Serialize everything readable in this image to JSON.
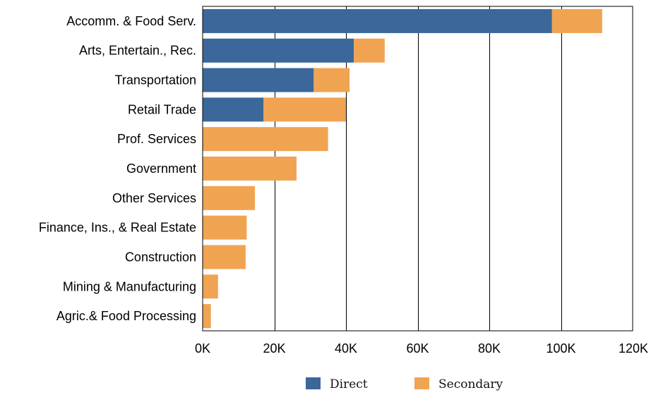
{
  "chart_data": {
    "type": "bar",
    "orientation": "horizontal",
    "stacked": true,
    "categories": [
      "Accomm. & Food Serv.",
      "Arts, Entertain., Rec.",
      "Transportation",
      "Retail Trade",
      "Prof. Services",
      "Government",
      "Other Services",
      "Finance, Ins., & Real Estate",
      "Construction",
      "Mining & Manufacturing",
      "Agric.& Food Processing"
    ],
    "series": [
      {
        "name": "Direct",
        "color": "#3b679a",
        "values": [
          97500,
          42200,
          31000,
          17000,
          0,
          0,
          0,
          0,
          0,
          0,
          0
        ]
      },
      {
        "name": "Secondary",
        "color": "#f0a452",
        "values": [
          14000,
          8600,
          10000,
          23000,
          35000,
          26200,
          14600,
          12300,
          12000,
          4300,
          2300
        ]
      }
    ],
    "xlim": [
      0,
      120000
    ],
    "xticks": [
      0,
      20000,
      40000,
      60000,
      80000,
      100000,
      120000
    ],
    "xtick_labels": [
      "0K",
      "20K",
      "40K",
      "60K",
      "80K",
      "100K",
      "120K"
    ],
    "grid": "vertical",
    "legend_position": "bottom-center"
  }
}
